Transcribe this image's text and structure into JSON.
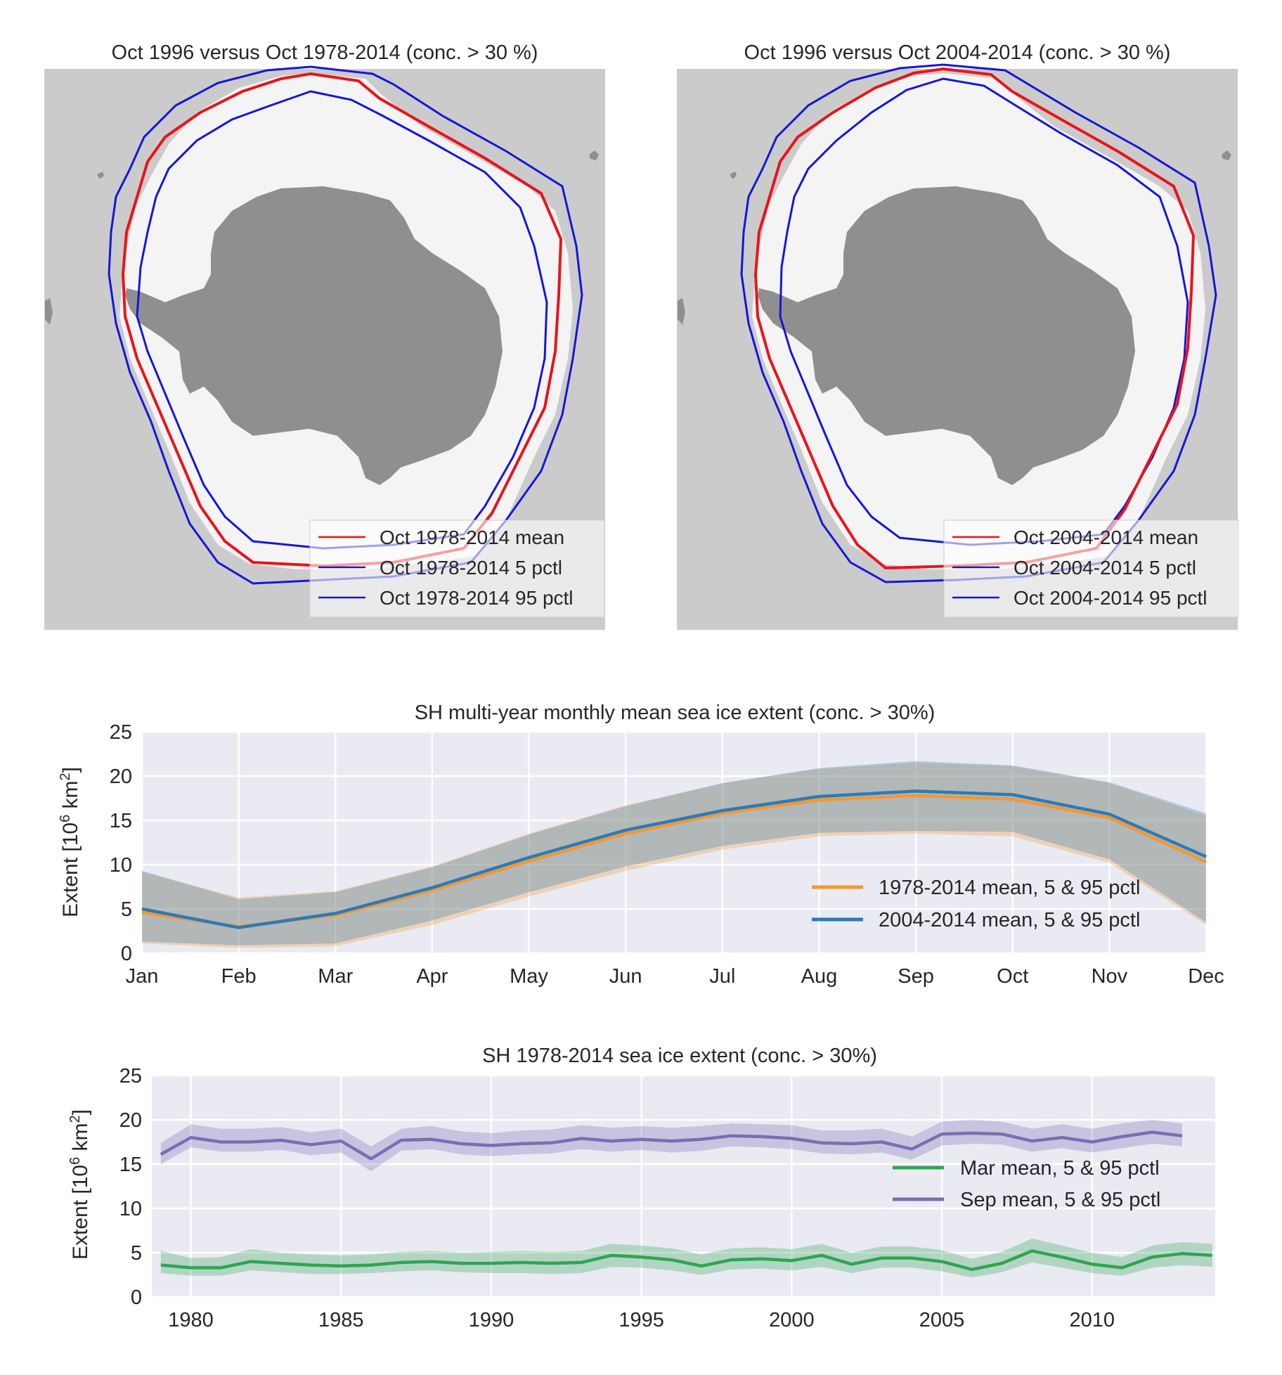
{
  "colors": {
    "map_bg": "#cbcbcb",
    "ice": "#f4f4f4",
    "land": "#8f8f8f",
    "mean_line": "#e8141b",
    "pctl_line": "#1616d8",
    "plot_bg": "#eaeaf2",
    "orange": "#f39732",
    "blue": "#2c7bb6",
    "green": "#2fa552",
    "purple": "#7a6eb3"
  },
  "maps": [
    {
      "title": "Oct 1996 versus Oct 1978-2014 (conc. > 30 %)",
      "legend": [
        "Oct 1978-2014 mean",
        "Oct 1978-2014 5 pctl",
        "Oct 1978-2014 95 pctl"
      ]
    },
    {
      "title": "Oct 1996 versus Oct 2004-2014 (conc. > 30 %)",
      "legend": [
        "Oct 2004-2014 mean",
        "Oct 2004-2014 5 pctl",
        "Oct 2004-2014 95 pctl"
      ]
    }
  ],
  "chart_data": [
    {
      "type": "line",
      "title": "SH multi-year monthly mean sea ice extent (conc. > 30%)",
      "ylabel": "Extent [10^6 km^2]",
      "ylim": [
        0,
        25
      ],
      "yticks": [
        0,
        5,
        10,
        15,
        20,
        25
      ],
      "categories": [
        "Jan",
        "Feb",
        "Mar",
        "Apr",
        "May",
        "Jun",
        "Jul",
        "Aug",
        "Sep",
        "Oct",
        "Nov",
        "Dec"
      ],
      "grid": true,
      "legend_position": "lower-right",
      "series": [
        {
          "name": "1978-2014 mean, 5 & 95 pctl",
          "color": "orange",
          "mean": [
            4.6,
            3.0,
            4.3,
            7.1,
            10.4,
            13.5,
            15.8,
            17.3,
            17.8,
            17.4,
            15.3,
            10.3
          ],
          "p5": [
            1.1,
            0.6,
            0.8,
            3.2,
            6.4,
            9.3,
            11.7,
            13.2,
            13.5,
            13.2,
            10.2,
            3.2
          ],
          "p95": [
            9.2,
            6.3,
            7.0,
            9.8,
            13.5,
            16.7,
            19.2,
            20.8,
            21.5,
            21.1,
            19.2,
            15.5
          ]
        },
        {
          "name": "2004-2014 mean, 5 & 95 pctl",
          "color": "blue",
          "mean": [
            5.0,
            2.9,
            4.5,
            7.4,
            10.8,
            13.9,
            16.1,
            17.7,
            18.3,
            17.9,
            15.7,
            10.9
          ],
          "p5": [
            1.3,
            0.9,
            1.1,
            3.7,
            6.9,
            9.8,
            12.1,
            13.6,
            13.8,
            13.7,
            10.6,
            3.5
          ],
          "p95": [
            9.3,
            6.1,
            6.9,
            9.7,
            13.4,
            16.6,
            19.2,
            20.9,
            21.7,
            21.2,
            19.3,
            15.8
          ]
        }
      ]
    },
    {
      "type": "line",
      "title": "SH 1978-2014 sea ice extent (conc. > 30%)",
      "ylabel": "Extent [10^6 km^2]",
      "ylim": [
        0,
        25
      ],
      "xlim": [
        1978.7,
        2014.1
      ],
      "yticks": [
        0,
        5,
        10,
        15,
        20,
        25
      ],
      "xticks": [
        1980,
        1985,
        1990,
        1995,
        2000,
        2005,
        2010
      ],
      "grid": true,
      "legend_position": "right",
      "series": [
        {
          "name": "Mar mean, 5 & 95 pctl",
          "color": "green",
          "x": [
            1979,
            1980,
            1981,
            1982,
            1983,
            1984,
            1985,
            1986,
            1987,
            1988,
            1989,
            1990,
            1991,
            1992,
            1993,
            1994,
            1995,
            1996,
            1997,
            1998,
            1999,
            2000,
            2001,
            2002,
            2003,
            2004,
            2005,
            2006,
            2007,
            2008,
            2009,
            2010,
            2011,
            2012,
            2013,
            2014
          ],
          "mean": [
            3.6,
            3.3,
            3.3,
            4.0,
            3.8,
            3.6,
            3.5,
            3.6,
            3.9,
            4.0,
            3.8,
            3.8,
            3.9,
            3.8,
            3.9,
            4.7,
            4.5,
            4.2,
            3.5,
            4.2,
            4.3,
            4.1,
            4.7,
            3.7,
            4.4,
            4.4,
            4.0,
            3.1,
            3.8,
            5.2,
            4.5,
            3.7,
            3.3,
            4.5,
            4.9,
            4.7
          ],
          "p5": [
            2.7,
            2.4,
            2.4,
            3.0,
            2.8,
            2.6,
            2.6,
            2.7,
            2.9,
            3.0,
            2.8,
            2.7,
            2.7,
            2.6,
            2.7,
            3.4,
            3.3,
            3.0,
            2.5,
            3.1,
            3.2,
            3.0,
            3.4,
            2.7,
            3.3,
            3.3,
            2.9,
            2.2,
            2.8,
            3.9,
            3.3,
            2.7,
            2.4,
            3.3,
            3.6,
            3.4
          ],
          "p95": [
            5.2,
            4.4,
            4.5,
            5.4,
            5.0,
            4.8,
            4.7,
            4.8,
            5.1,
            5.2,
            5.0,
            5.1,
            5.2,
            5.1,
            5.2,
            6.0,
            5.8,
            5.5,
            4.8,
            5.5,
            5.6,
            5.4,
            6.0,
            5.0,
            5.7,
            5.7,
            5.3,
            4.3,
            5.1,
            6.6,
            5.8,
            5.0,
            4.5,
            5.8,
            6.2,
            6.0
          ]
        },
        {
          "name": "Sep mean, 5 & 95 pctl",
          "color": "purple",
          "x": [
            1979,
            1980,
            1981,
            1982,
            1983,
            1984,
            1985,
            1986,
            1987,
            1988,
            1989,
            1990,
            1991,
            1992,
            1993,
            1994,
            1995,
            1996,
            1997,
            1998,
            1999,
            2000,
            2001,
            2002,
            2003,
            2004,
            2005,
            2006,
            2007,
            2008,
            2009,
            2010,
            2011,
            2012,
            2013
          ],
          "mean": [
            16.1,
            18.0,
            17.5,
            17.5,
            17.7,
            17.2,
            17.6,
            15.6,
            17.7,
            17.8,
            17.3,
            17.1,
            17.3,
            17.4,
            17.9,
            17.6,
            17.8,
            17.6,
            17.8,
            18.2,
            18.1,
            17.9,
            17.4,
            17.3,
            17.5,
            16.7,
            18.4,
            18.5,
            18.4,
            17.6,
            18.0,
            17.5,
            18.1,
            18.6,
            18.2
          ],
          "p5": [
            15.0,
            16.9,
            16.4,
            16.4,
            16.6,
            16.0,
            16.3,
            14.2,
            16.5,
            16.7,
            16.1,
            15.9,
            16.1,
            16.2,
            16.7,
            16.4,
            16.6,
            16.3,
            16.5,
            17.0,
            16.9,
            16.7,
            16.2,
            16.1,
            16.3,
            15.5,
            17.1,
            17.3,
            17.2,
            16.4,
            16.8,
            16.3,
            16.8,
            17.3,
            17.0
          ],
          "p95": [
            17.4,
            19.5,
            19.0,
            19.0,
            19.2,
            18.6,
            19.0,
            17.0,
            19.0,
            19.3,
            18.7,
            18.5,
            18.8,
            18.9,
            19.4,
            19.1,
            19.3,
            19.1,
            19.3,
            19.6,
            19.5,
            19.4,
            18.8,
            18.8,
            19.0,
            18.1,
            19.8,
            20.0,
            19.8,
            19.0,
            19.5,
            19.0,
            19.6,
            20.0,
            19.6
          ]
        }
      ]
    }
  ]
}
